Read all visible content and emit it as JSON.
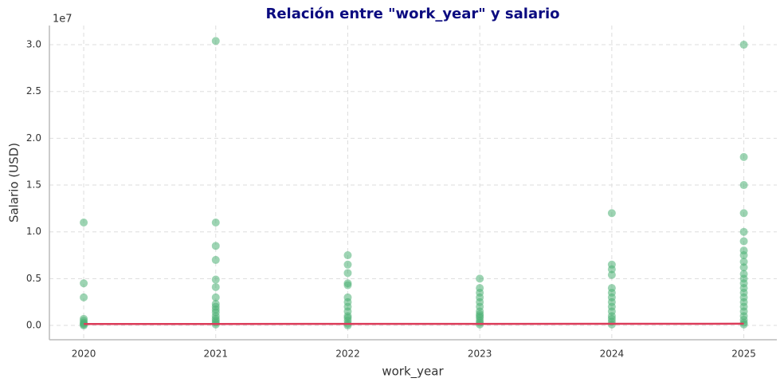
{
  "chart_data": {
    "type": "scatter",
    "title": "Relación entre \"work_year\" y salario",
    "xlabel": "work_year",
    "ylabel": "Salario (USD)",
    "y_offset_label": "1e7",
    "xlim": [
      2019.74,
      2025.25
    ],
    "xticks": [
      2020,
      2021,
      2022,
      2023,
      2024,
      2025
    ],
    "ylim": [
      -0.153,
      3.205
    ],
    "yticks": [
      {
        "value": 0,
        "label": "0.0"
      },
      0.5,
      {
        "value": 1,
        "label": "1.0"
      },
      1.5,
      {
        "value": 2,
        "label": "2.0"
      },
      2.5,
      {
        "value": 3,
        "label": "3.0"
      }
    ],
    "grid": true,
    "series": [
      {
        "color": "#4cb074",
        "x": [
          2020,
          2020,
          2020,
          2020,
          2020,
          2020,
          2020,
          2020,
          2020,
          2021,
          2021,
          2021,
          2021,
          2021,
          2021,
          2021,
          2021,
          2021,
          2021,
          2021,
          2021,
          2021,
          2021,
          2021,
          2021,
          2022,
          2022,
          2022,
          2022,
          2022,
          2022,
          2022,
          2022,
          2022,
          2022,
          2022,
          2022,
          2022,
          2022,
          2023,
          2023,
          2023,
          2023,
          2023,
          2023,
          2023,
          2023,
          2023,
          2023,
          2023,
          2023,
          2023,
          2024,
          2024,
          2024,
          2024,
          2024,
          2024,
          2024,
          2024,
          2024,
          2024,
          2024,
          2024,
          2024,
          2024,
          2025,
          2025,
          2025,
          2025,
          2025,
          2025,
          2025,
          2025,
          2025,
          2025,
          2025,
          2025,
          2025,
          2025,
          2025,
          2025,
          2025,
          2025,
          2025,
          2025,
          2025,
          2025,
          2025
        ],
        "values": [
          1.1,
          0.45,
          0.3,
          0.07,
          0.05,
          0.03,
          0.02,
          0.01,
          0.0,
          3.04,
          1.1,
          0.85,
          0.7,
          0.49,
          0.41,
          0.3,
          0.23,
          0.2,
          0.17,
          0.14,
          0.1,
          0.07,
          0.05,
          0.03,
          0.01,
          0.75,
          0.65,
          0.56,
          0.45,
          0.43,
          0.3,
          0.25,
          0.2,
          0.15,
          0.1,
          0.08,
          0.05,
          0.02,
          0.0,
          0.5,
          0.4,
          0.35,
          0.3,
          0.25,
          0.2,
          0.15,
          0.12,
          0.1,
          0.08,
          0.05,
          0.03,
          0.01,
          1.2,
          0.65,
          0.6,
          0.54,
          0.4,
          0.35,
          0.3,
          0.25,
          0.2,
          0.15,
          0.1,
          0.07,
          0.04,
          0.01,
          3.0,
          1.8,
          1.5,
          1.2,
          1.0,
          0.9,
          0.8,
          0.75,
          0.68,
          0.62,
          0.55,
          0.5,
          0.45,
          0.4,
          0.35,
          0.3,
          0.25,
          0.2,
          0.15,
          0.1,
          0.06,
          0.03,
          0.01
        ]
      }
    ],
    "trend": {
      "color": "#dc3c5a",
      "x": [
        2020,
        2025
      ],
      "values": [
        0.015,
        0.018
      ]
    }
  }
}
